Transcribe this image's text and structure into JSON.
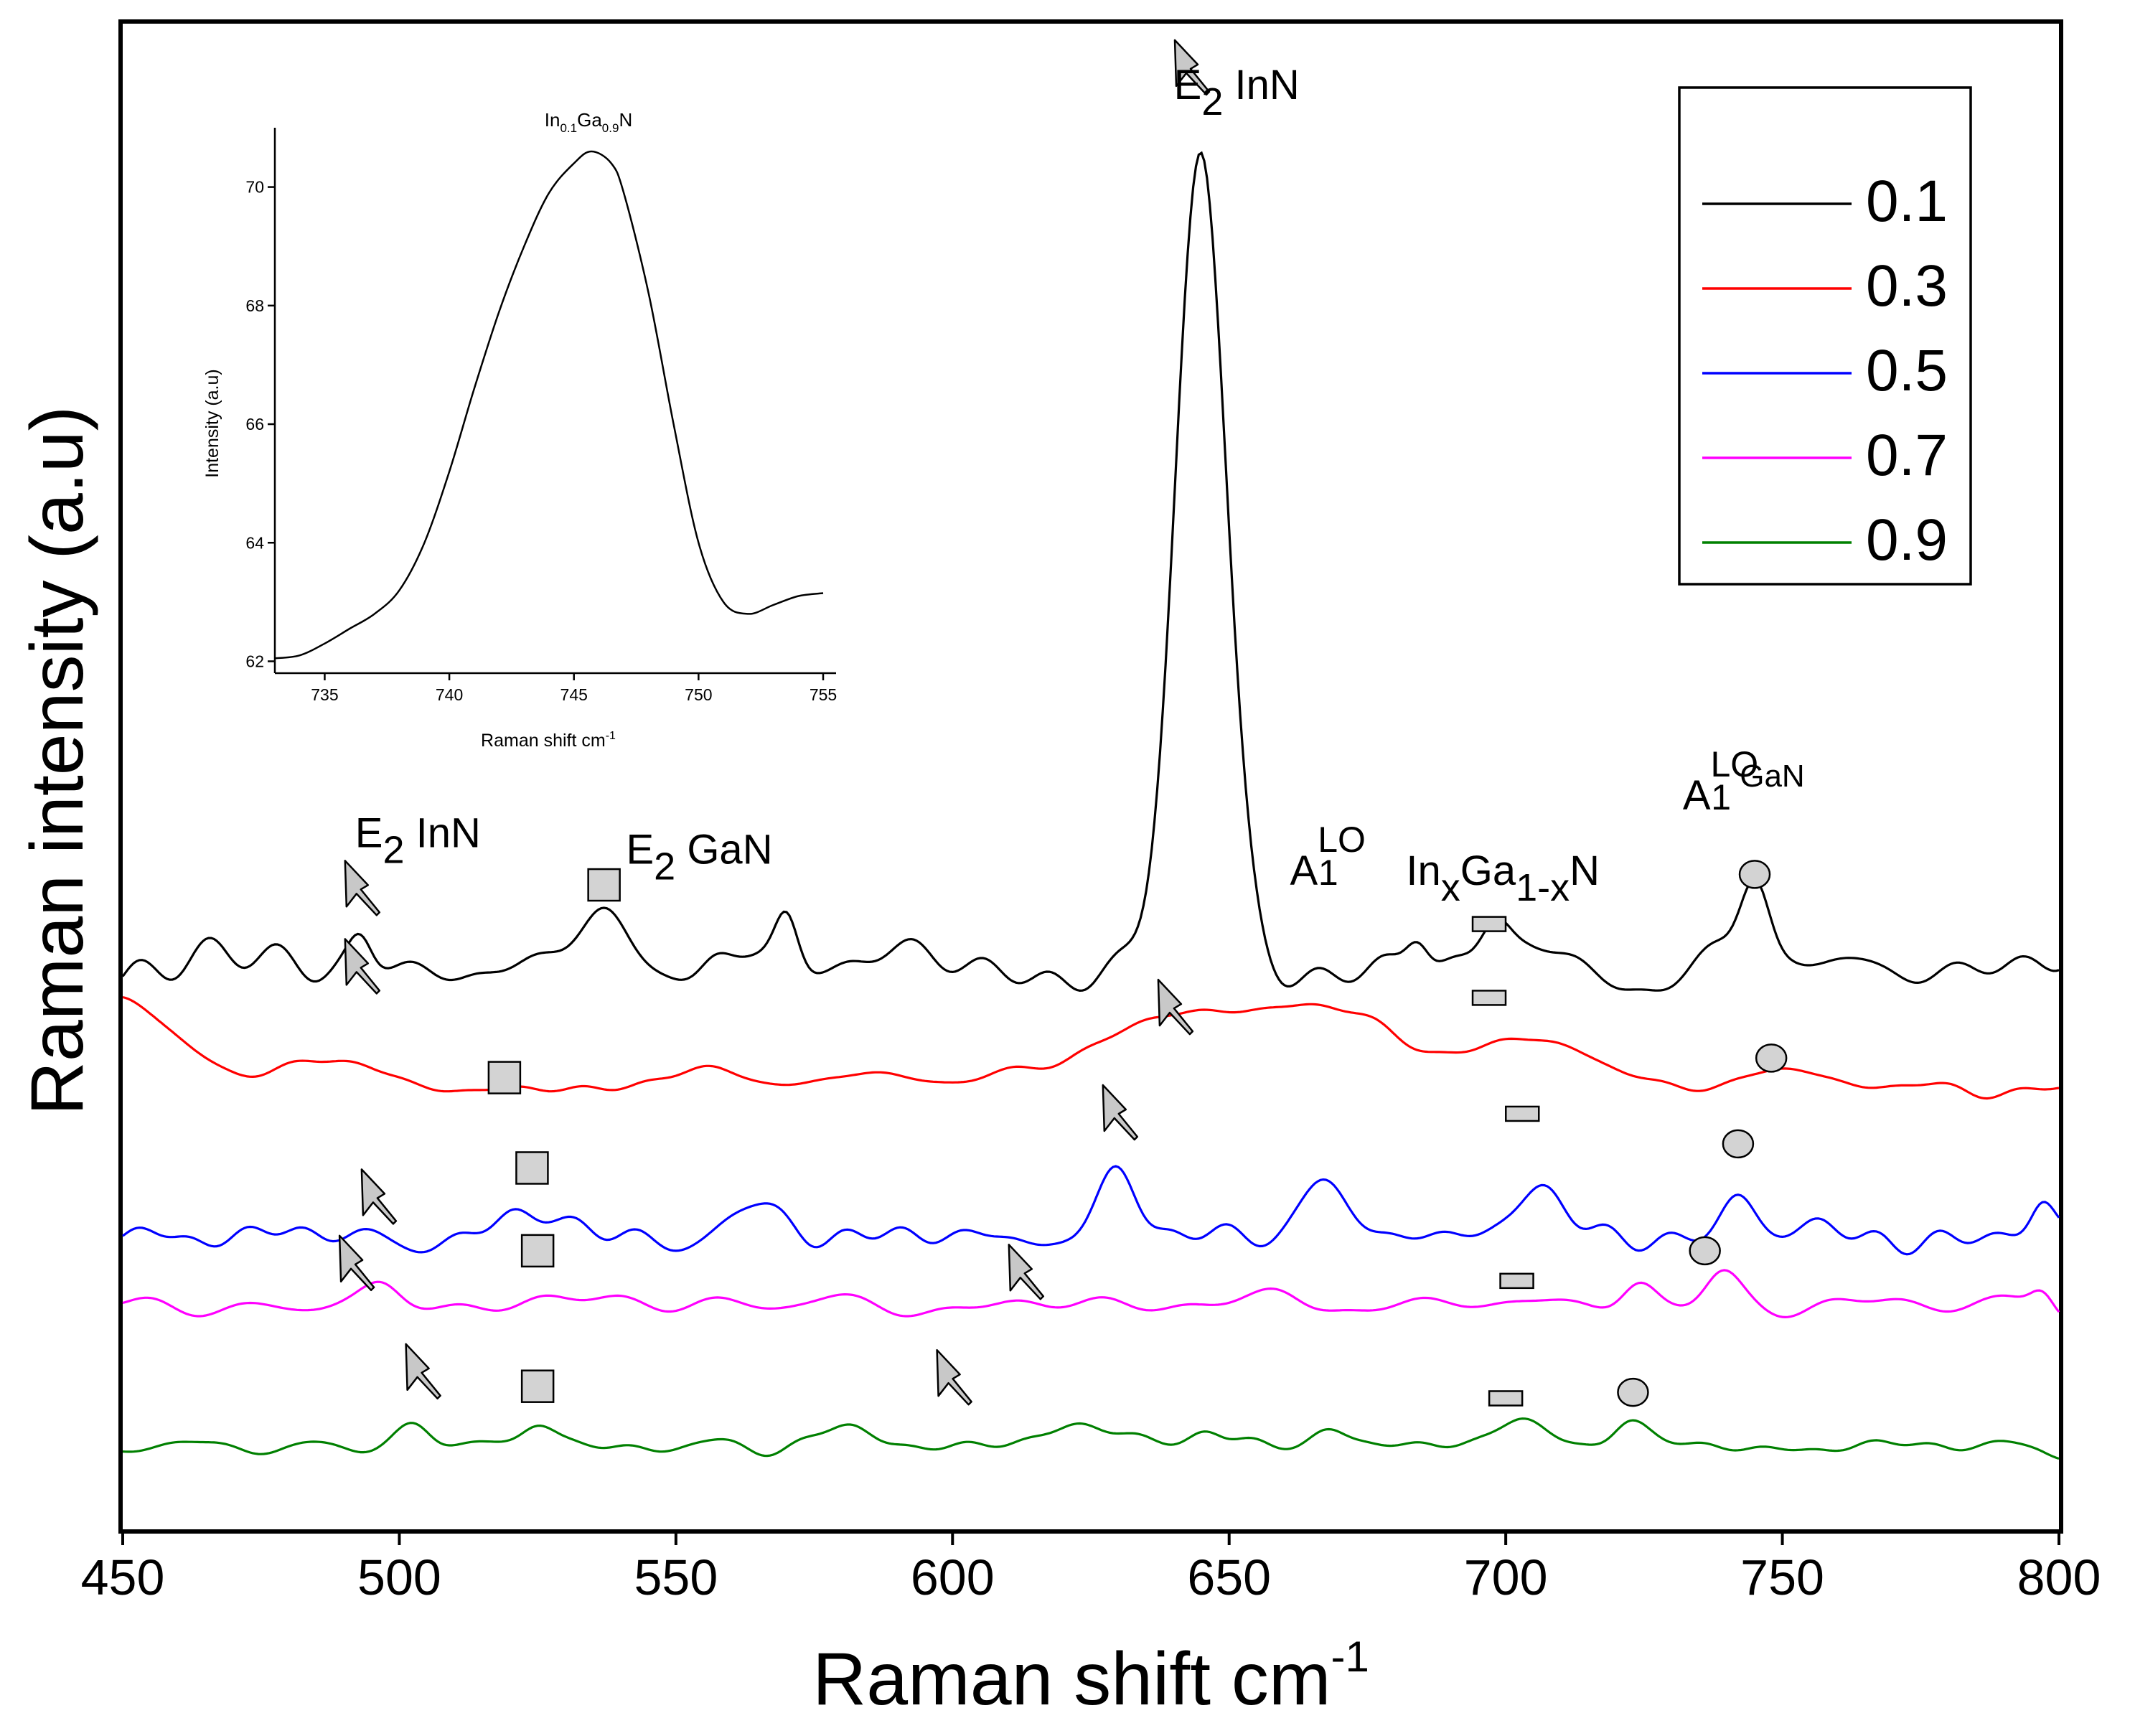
{
  "chart_data": [
    {
      "type": "line",
      "title": "",
      "xlabel": "Raman shift cm",
      "xlabel_sup": "-1",
      "ylabel": "Raman intensity (a.u)",
      "xlim": [
        450,
        800
      ],
      "ylim": [
        0,
        100
      ],
      "x_ticks": [
        450,
        500,
        550,
        600,
        650,
        700,
        750,
        800
      ],
      "y_ticks_shown": false,
      "grid": false,
      "legend_position": "top-right",
      "series": [
        {
          "name": "0.1",
          "color": "#000000",
          "baseline": 37.5,
          "noise_amp": 1.8,
          "seed": 11,
          "bumps": [
            [
              493,
              1.8,
              2.0
            ],
            [
              537,
              2.2,
              4.0
            ],
            [
              557,
              2.0,
              3.0
            ],
            [
              570,
              3.2,
              2.0
            ],
            [
              645,
              53,
              4.5
            ],
            [
              684,
              2.2,
              2.0
            ],
            [
              698,
              2.5,
              2.5
            ],
            [
              745,
              5.0,
              2.5
            ]
          ]
        },
        {
          "name": "0.3",
          "color": "#ff0000",
          "baseline": 29.2,
          "noise_amp": 0.4,
          "seed": 23,
          "bumps": [
            [
              450,
              6.0,
              10.0
            ],
            [
              487,
              2.0,
              9.0
            ],
            [
              555,
              1.3,
              8.0
            ],
            [
              585,
              0.9,
              9.0
            ],
            [
              650,
              5.5,
              22.0
            ],
            [
              673,
              2.0,
              7.0
            ],
            [
              705,
              3.2,
              11.0
            ],
            [
              752,
              1.2,
              9.0
            ]
          ]
        },
        {
          "name": "0.5",
          "color": "#0000ff",
          "baseline": 19.5,
          "noise_amp": 1.3,
          "seed": 37,
          "bumps": [
            [
              527,
              1.8,
              3.5
            ],
            [
              565,
              1.8,
              4.0
            ],
            [
              630,
              3.8,
              3.5
            ],
            [
              666,
              3.7,
              4.0
            ],
            [
              705,
              3.0,
              4.5
            ],
            [
              742,
              2.6,
              3.0
            ],
            [
              797,
              1.7,
              2.0
            ]
          ]
        },
        {
          "name": "0.7",
          "color": "#ff00ff",
          "baseline": 14.9,
          "noise_amp": 0.9,
          "seed": 53,
          "bumps": [
            [
              497,
              0.8,
              3.0
            ],
            [
              535,
              0.8,
              5.0
            ],
            [
              660,
              0.8,
              4.0
            ],
            [
              724,
              1.8,
              3.0
            ],
            [
              739,
              1.8,
              3.0
            ],
            [
              797,
              1.2,
              2.0
            ]
          ]
        },
        {
          "name": "0.9",
          "color": "#008000",
          "baseline": 5.5,
          "noise_amp": 0.7,
          "seed": 71,
          "bumps": [
            [
              503,
              1.4,
              3.0
            ],
            [
              525,
              1.8,
              3.0
            ],
            [
              581,
              1.5,
              4.0
            ],
            [
              623,
              1.6,
              6.0
            ],
            [
              646,
              1.4,
              3.0
            ],
            [
              668,
              1.4,
              3.0
            ],
            [
              702,
              2.2,
              4.0
            ],
            [
              722,
              1.8,
              3.0
            ]
          ]
        }
      ],
      "annotations": [
        {
          "label": "E",
          "sub": "2",
          "rest": " InN",
          "x": 492,
          "y": 45.3
        },
        {
          "label": "E",
          "sub": "2",
          "rest": " GaN",
          "x": 541,
          "y": 44.2
        },
        {
          "label": "E",
          "sub": "2",
          "rest": " InN",
          "x": 640,
          "y": 95.0
        },
        {
          "label": "A",
          "sub": "1",
          "sup": "LO",
          "rest": "",
          "x": 661,
          "y": 42.8
        },
        {
          "label": "In",
          "sub": "x",
          "rest": "Ga",
          "sub2": "1-x",
          "rest2": "N",
          "x": 682,
          "y": 42.8
        },
        {
          "label": "A",
          "sub": "1",
          "sup": "LO",
          "rest": "   GaN",
          "x": 732,
          "y": 47.8
        }
      ],
      "markers": [
        {
          "shape": "arrow",
          "x": 492,
          "y": 42.5
        },
        {
          "shape": "arrow",
          "x": 492,
          "y": 37.3
        },
        {
          "shape": "arrow",
          "x": 495,
          "y": 22.0
        },
        {
          "shape": "arrow",
          "x": 491,
          "y": 17.6
        },
        {
          "shape": "arrow",
          "x": 503,
          "y": 10.4
        },
        {
          "shape": "arrow",
          "x": 642,
          "y": 97.0
        },
        {
          "shape": "arrow",
          "x": 639,
          "y": 34.6
        },
        {
          "shape": "arrow",
          "x": 629,
          "y": 27.6
        },
        {
          "shape": "arrow",
          "x": 612,
          "y": 17.0
        },
        {
          "shape": "arrow",
          "x": 599,
          "y": 10.0
        },
        {
          "shape": "square",
          "x": 537,
          "y": 42.8
        },
        {
          "shape": "square",
          "x": 519,
          "y": 30.0
        },
        {
          "shape": "square",
          "x": 524,
          "y": 24.0
        },
        {
          "shape": "square",
          "x": 525,
          "y": 18.5
        },
        {
          "shape": "square",
          "x": 525,
          "y": 9.5
        },
        {
          "shape": "rect",
          "x": 697,
          "y": 40.2
        },
        {
          "shape": "rect",
          "x": 697,
          "y": 35.3
        },
        {
          "shape": "rect",
          "x": 703,
          "y": 27.6
        },
        {
          "shape": "rect",
          "x": 702,
          "y": 16.5
        },
        {
          "shape": "rect",
          "x": 700,
          "y": 8.7
        },
        {
          "shape": "circle",
          "x": 745,
          "y": 43.5
        },
        {
          "shape": "circle",
          "x": 748,
          "y": 31.3
        },
        {
          "shape": "circle",
          "x": 742,
          "y": 25.6
        },
        {
          "shape": "circle",
          "x": 736,
          "y": 18.5
        },
        {
          "shape": "circle",
          "x": 723,
          "y": 9.1
        }
      ]
    },
    {
      "type": "line",
      "title": "In",
      "title_sub1": "0.1",
      "title_mid": "Ga",
      "title_sub2": "0.9",
      "title_end": "N",
      "xlabel": "Raman shift cm",
      "xlabel_sup": "-1",
      "ylabel": "Intensity (a.u)",
      "xlim": [
        733,
        755
      ],
      "ylim": [
        61.8,
        71.0
      ],
      "x_ticks": [
        735,
        740,
        745,
        750,
        755
      ],
      "y_ticks": [
        62,
        64,
        66,
        68,
        70
      ],
      "series": [
        {
          "name": "inset",
          "color": "#000000",
          "x": [
            733,
            734,
            735,
            736,
            737,
            738,
            739,
            740,
            741,
            742,
            743,
            744,
            745,
            745.7,
            746.5,
            747,
            748,
            749,
            750,
            751,
            752,
            753,
            754,
            755
          ],
          "y": [
            62.05,
            62.1,
            62.3,
            62.55,
            62.8,
            63.2,
            64.0,
            65.2,
            66.6,
            67.9,
            69.0,
            69.9,
            70.4,
            70.6,
            70.4,
            69.9,
            68.2,
            66.0,
            64.0,
            63.0,
            62.8,
            62.95,
            63.1,
            63.15
          ]
        }
      ]
    }
  ]
}
